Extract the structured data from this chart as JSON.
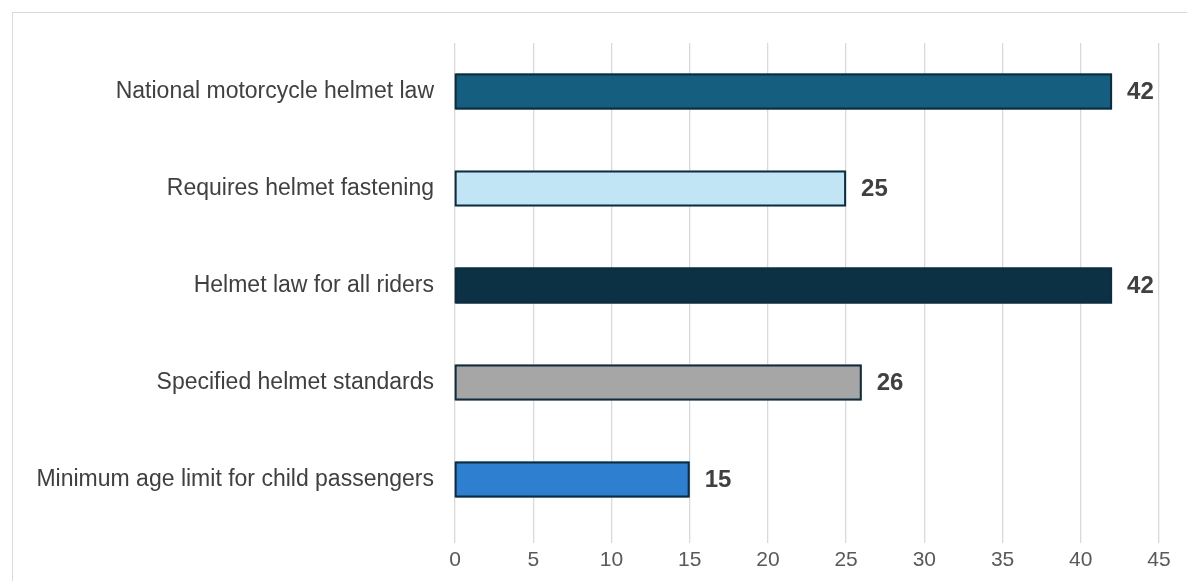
{
  "chart_data": {
    "type": "bar",
    "orientation": "horizontal",
    "categories": [
      "National motorcycle helmet law",
      "Requires helmet fastening",
      "Helmet law for all riders",
      "Specified helmet standards",
      "Minimum age limit for child passengers"
    ],
    "values": [
      42,
      25,
      42,
      26,
      15
    ],
    "colors": [
      "#165e80",
      "#c1e5f5",
      "#0d3144",
      "#a6a6a6",
      "#2e7fd0"
    ],
    "xlim": [
      0,
      45
    ],
    "xticks": [
      0,
      5,
      10,
      15,
      20,
      25,
      30,
      35,
      40,
      45
    ],
    "grid": "x",
    "data_labels": true
  }
}
